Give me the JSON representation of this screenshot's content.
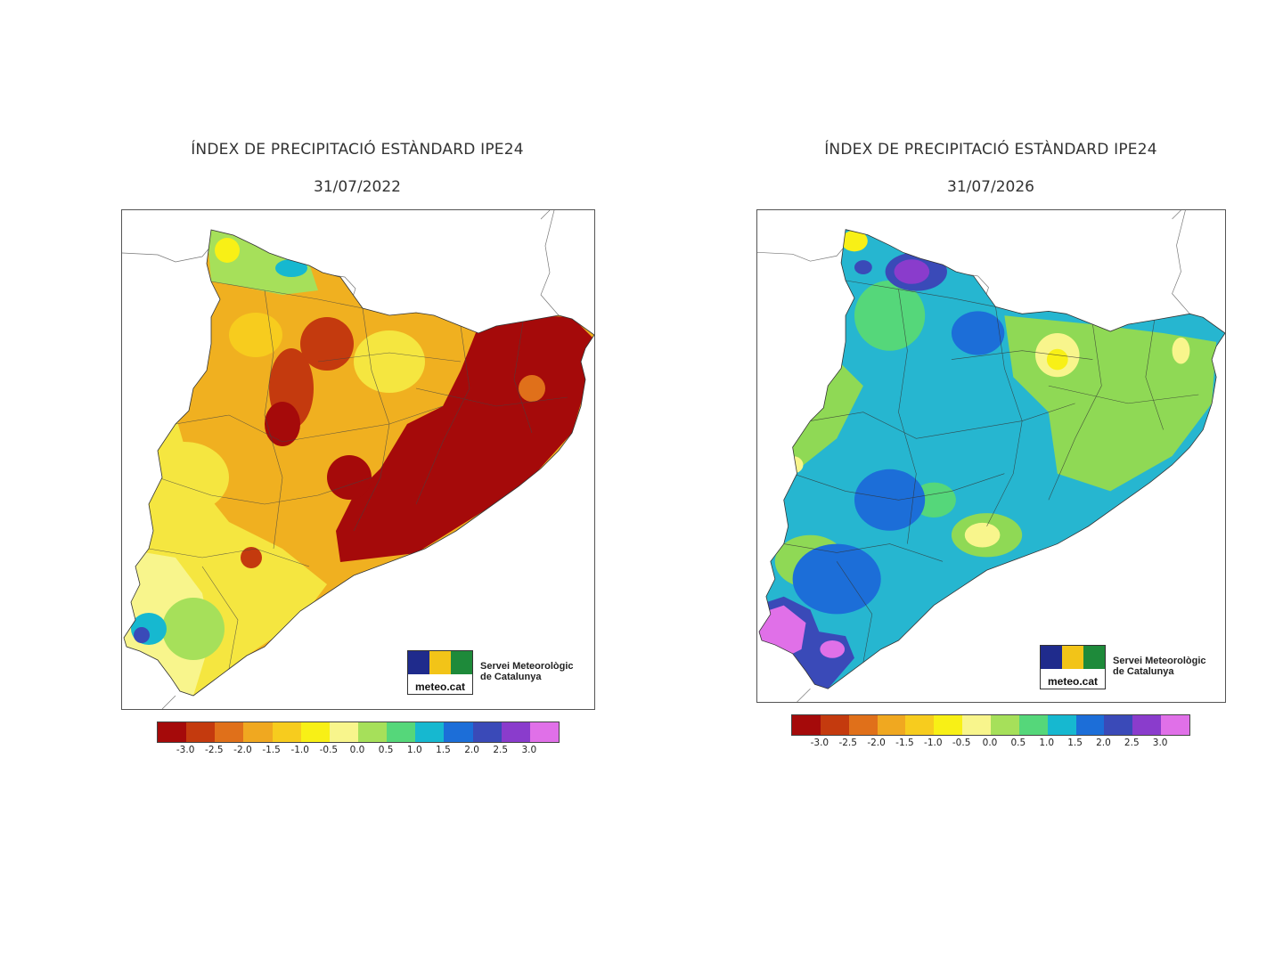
{
  "panels": [
    {
      "title": "ÍNDEX DE PRECIPITACIÓ ESTÀNDARD IPE24",
      "date": "31/07/2022",
      "base_color": "#f0b020",
      "blobs": [
        {
          "color": "#f5e640",
          "kind": "west-yellow"
        },
        {
          "color": "#a50a0a",
          "kind": "east-red"
        }
      ]
    },
    {
      "title": "ÍNDEX DE PRECIPITACIÓ ESTÀNDARD IPE24",
      "date": "31/07/2026",
      "base_color": "#26b6d0",
      "blobs": [
        {
          "color": "#8fd955",
          "kind": "green"
        },
        {
          "color": "#e070e8",
          "kind": "magenta"
        }
      ]
    }
  ],
  "legend": {
    "colors": [
      "#a50a0a",
      "#c43a0e",
      "#e0701a",
      "#f0a820",
      "#f7cc1e",
      "#f8f016",
      "#f8f58c",
      "#a6e05a",
      "#55d77a",
      "#16b8d0",
      "#1c6ed8",
      "#3a4ab8",
      "#8a3ccc",
      "#e070e8"
    ],
    "ticks": [
      "-3.0",
      "-2.5",
      "-2.0",
      "-1.5",
      "-1.0",
      "-0.5",
      "0.0",
      "0.5",
      "1.0",
      "1.5",
      "2.0",
      "2.5",
      "3.0"
    ]
  },
  "logo": {
    "word": "meteo.cat",
    "org_line1": "Servei Meteorològic",
    "org_line2": "de Catalunya",
    "strip_colors": [
      "#1f2b8c",
      "#f2c418",
      "#1e8a3a"
    ]
  }
}
